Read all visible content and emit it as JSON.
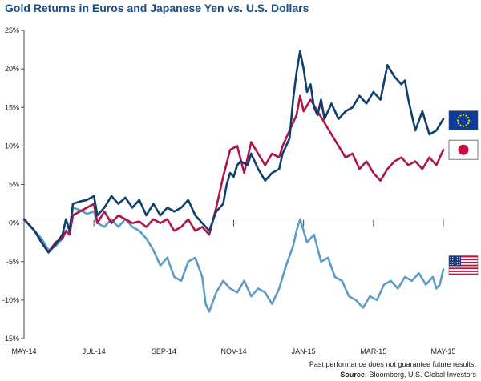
{
  "chart_data": {
    "type": "line",
    "title": "Gold Returns in Euros and Japanese Yen vs. U.S. Dollars",
    "xlabel": "",
    "ylabel": "",
    "ylim": [
      -15,
      25
    ],
    "yticks": [
      -15,
      -10,
      -5,
      0,
      5,
      10,
      15,
      20,
      25
    ],
    "ytick_labels": [
      "-15%",
      "-10%",
      "-5%",
      "0%",
      "5%",
      "10%",
      "15%",
      "20%",
      "25%"
    ],
    "xlim": [
      0,
      12
    ],
    "xticks": [
      0,
      2,
      4,
      6,
      8,
      10,
      12
    ],
    "xtick_labels": [
      "MAY-14",
      "JUL-14",
      "SEP-14",
      "NOV-14",
      "JAN-15",
      "MAR-15",
      "MAY-15"
    ],
    "grid": false,
    "legend": [
      {
        "name": "Euro",
        "icon": "eu-flag",
        "label_y": 13.3
      },
      {
        "name": "Japanese Yen",
        "icon": "japan-flag",
        "label_y": 9.5
      },
      {
        "name": "U.S. Dollar",
        "icon": "us-flag",
        "label_y": -5.5
      }
    ],
    "series": [
      {
        "name": "Euro",
        "color": "#0f3f6e",
        "x": [
          0,
          0.3,
          0.5,
          0.7,
          0.9,
          1.1,
          1.2,
          1.3,
          1.4,
          1.6,
          1.8,
          2.0,
          2.1,
          2.3,
          2.5,
          2.7,
          2.9,
          3.1,
          3.3,
          3.5,
          3.7,
          3.9,
          4.1,
          4.3,
          4.5,
          4.7,
          4.9,
          5.1,
          5.3,
          5.5,
          5.7,
          5.8,
          5.9,
          6.0,
          6.1,
          6.2,
          6.4,
          6.5,
          6.7,
          6.9,
          7.1,
          7.3,
          7.4,
          7.5,
          7.6,
          7.7,
          7.8,
          7.9,
          8.0,
          8.1,
          8.2,
          8.3,
          8.4,
          8.5,
          8.6,
          8.8,
          9.0,
          9.2,
          9.4,
          9.6,
          9.8,
          10.0,
          10.2,
          10.4,
          10.6,
          10.8,
          10.9,
          11.0,
          11.2,
          11.4,
          11.6,
          11.8,
          12.0
        ],
        "values": [
          0.5,
          -1.0,
          -2.5,
          -3.8,
          -2.8,
          -1.5,
          0.5,
          -1.0,
          2.5,
          2.8,
          3.0,
          3.5,
          1.0,
          2.0,
          3.5,
          2.5,
          3.3,
          2.0,
          3.0,
          1.0,
          2.5,
          1.0,
          2.0,
          1.5,
          2.0,
          3.0,
          1.0,
          0.0,
          -1.0,
          1.5,
          2.5,
          5.0,
          6.5,
          6.0,
          7.5,
          8.0,
          7.5,
          9.0,
          7.0,
          5.5,
          6.5,
          7.0,
          9.0,
          10.0,
          11.0,
          16.0,
          19.5,
          22.3,
          20.0,
          17.0,
          18.0,
          15.0,
          14.0,
          16.0,
          13.5,
          15.5,
          13.5,
          14.5,
          15.0,
          16.5,
          15.5,
          17.0,
          16.0,
          20.5,
          19.0,
          18.0,
          18.5,
          16.0,
          12.0,
          14.5,
          11.5,
          12.0,
          13.5
        ]
      },
      {
        "name": "Japanese Yen",
        "color": "#b0154a",
        "x": [
          0,
          0.3,
          0.5,
          0.7,
          0.9,
          1.1,
          1.2,
          1.3,
          1.4,
          1.6,
          1.8,
          2.0,
          2.1,
          2.3,
          2.5,
          2.7,
          2.9,
          3.1,
          3.3,
          3.5,
          3.7,
          3.9,
          4.1,
          4.3,
          4.5,
          4.7,
          4.9,
          5.1,
          5.3,
          5.5,
          5.7,
          5.9,
          6.1,
          6.3,
          6.5,
          6.7,
          6.9,
          7.1,
          7.3,
          7.4,
          7.6,
          7.8,
          7.9,
          8.0,
          8.2,
          8.4,
          8.6,
          8.8,
          9.0,
          9.2,
          9.4,
          9.6,
          9.8,
          10.0,
          10.2,
          10.4,
          10.6,
          10.8,
          11.0,
          11.2,
          11.4,
          11.6,
          11.8,
          12.0
        ],
        "values": [
          0.5,
          -1.0,
          -2.5,
          -3.8,
          -2.5,
          -2.0,
          -1.0,
          -1.5,
          1.0,
          1.5,
          2.0,
          2.5,
          0.0,
          1.5,
          0.0,
          1.0,
          0.5,
          0.0,
          0.2,
          -0.5,
          0.5,
          0.0,
          0.5,
          -1.0,
          -0.5,
          0.5,
          -1.0,
          -0.5,
          -1.5,
          2.0,
          6.0,
          9.5,
          10.0,
          6.5,
          10.5,
          9.0,
          7.5,
          9.0,
          8.5,
          10.0,
          12.0,
          14.0,
          16.5,
          14.5,
          16.0,
          14.5,
          13.0,
          11.5,
          10.0,
          8.5,
          9.0,
          7.0,
          8.0,
          6.5,
          5.5,
          7.0,
          8.0,
          8.5,
          7.5,
          8.0,
          7.0,
          8.5,
          7.5,
          9.5
        ]
      },
      {
        "name": "U.S. Dollar",
        "color": "#5d9cc7",
        "x": [
          0,
          0.3,
          0.5,
          0.7,
          0.9,
          1.1,
          1.2,
          1.3,
          1.4,
          1.6,
          1.8,
          2.0,
          2.1,
          2.3,
          2.5,
          2.7,
          2.9,
          3.1,
          3.3,
          3.5,
          3.7,
          3.9,
          4.1,
          4.3,
          4.5,
          4.7,
          4.9,
          5.1,
          5.2,
          5.3,
          5.5,
          5.7,
          5.9,
          6.1,
          6.3,
          6.5,
          6.7,
          6.9,
          7.1,
          7.3,
          7.5,
          7.7,
          7.8,
          7.9,
          8.0,
          8.1,
          8.3,
          8.5,
          8.7,
          8.9,
          9.1,
          9.3,
          9.5,
          9.7,
          9.9,
          10.1,
          10.3,
          10.5,
          10.7,
          10.9,
          11.1,
          11.3,
          11.5,
          11.7,
          11.8,
          11.9,
          12.0
        ],
        "values": [
          0.5,
          -1.0,
          -2.0,
          -3.5,
          -3.0,
          -2.0,
          -1.0,
          -1.2,
          2.0,
          1.7,
          1.2,
          1.5,
          0.0,
          -0.5,
          0.5,
          -0.5,
          0.5,
          -0.5,
          -1.0,
          -2.0,
          -3.5,
          -5.5,
          -4.5,
          -7.0,
          -7.5,
          -5.0,
          -4.5,
          -7.0,
          -10.5,
          -11.5,
          -9.0,
          -7.5,
          -8.5,
          -9.0,
          -7.5,
          -9.5,
          -8.5,
          -9.0,
          -10.5,
          -8.5,
          -5.5,
          -3.0,
          -1.0,
          0.5,
          -1.0,
          -2.5,
          -1.5,
          -5.0,
          -4.5,
          -7.0,
          -7.5,
          -9.5,
          -10.0,
          -11.0,
          -9.5,
          -10.0,
          -8.0,
          -7.5,
          -8.5,
          -7.0,
          -7.5,
          -6.5,
          -8.0,
          -7.0,
          -8.5,
          -8.0,
          -6.0
        ]
      }
    ]
  },
  "footer": {
    "disclaimer": "Past performance does not guarantee future results.",
    "source_label": "Source:",
    "source_text": " Bloomberg, U.S. Global Investors"
  }
}
